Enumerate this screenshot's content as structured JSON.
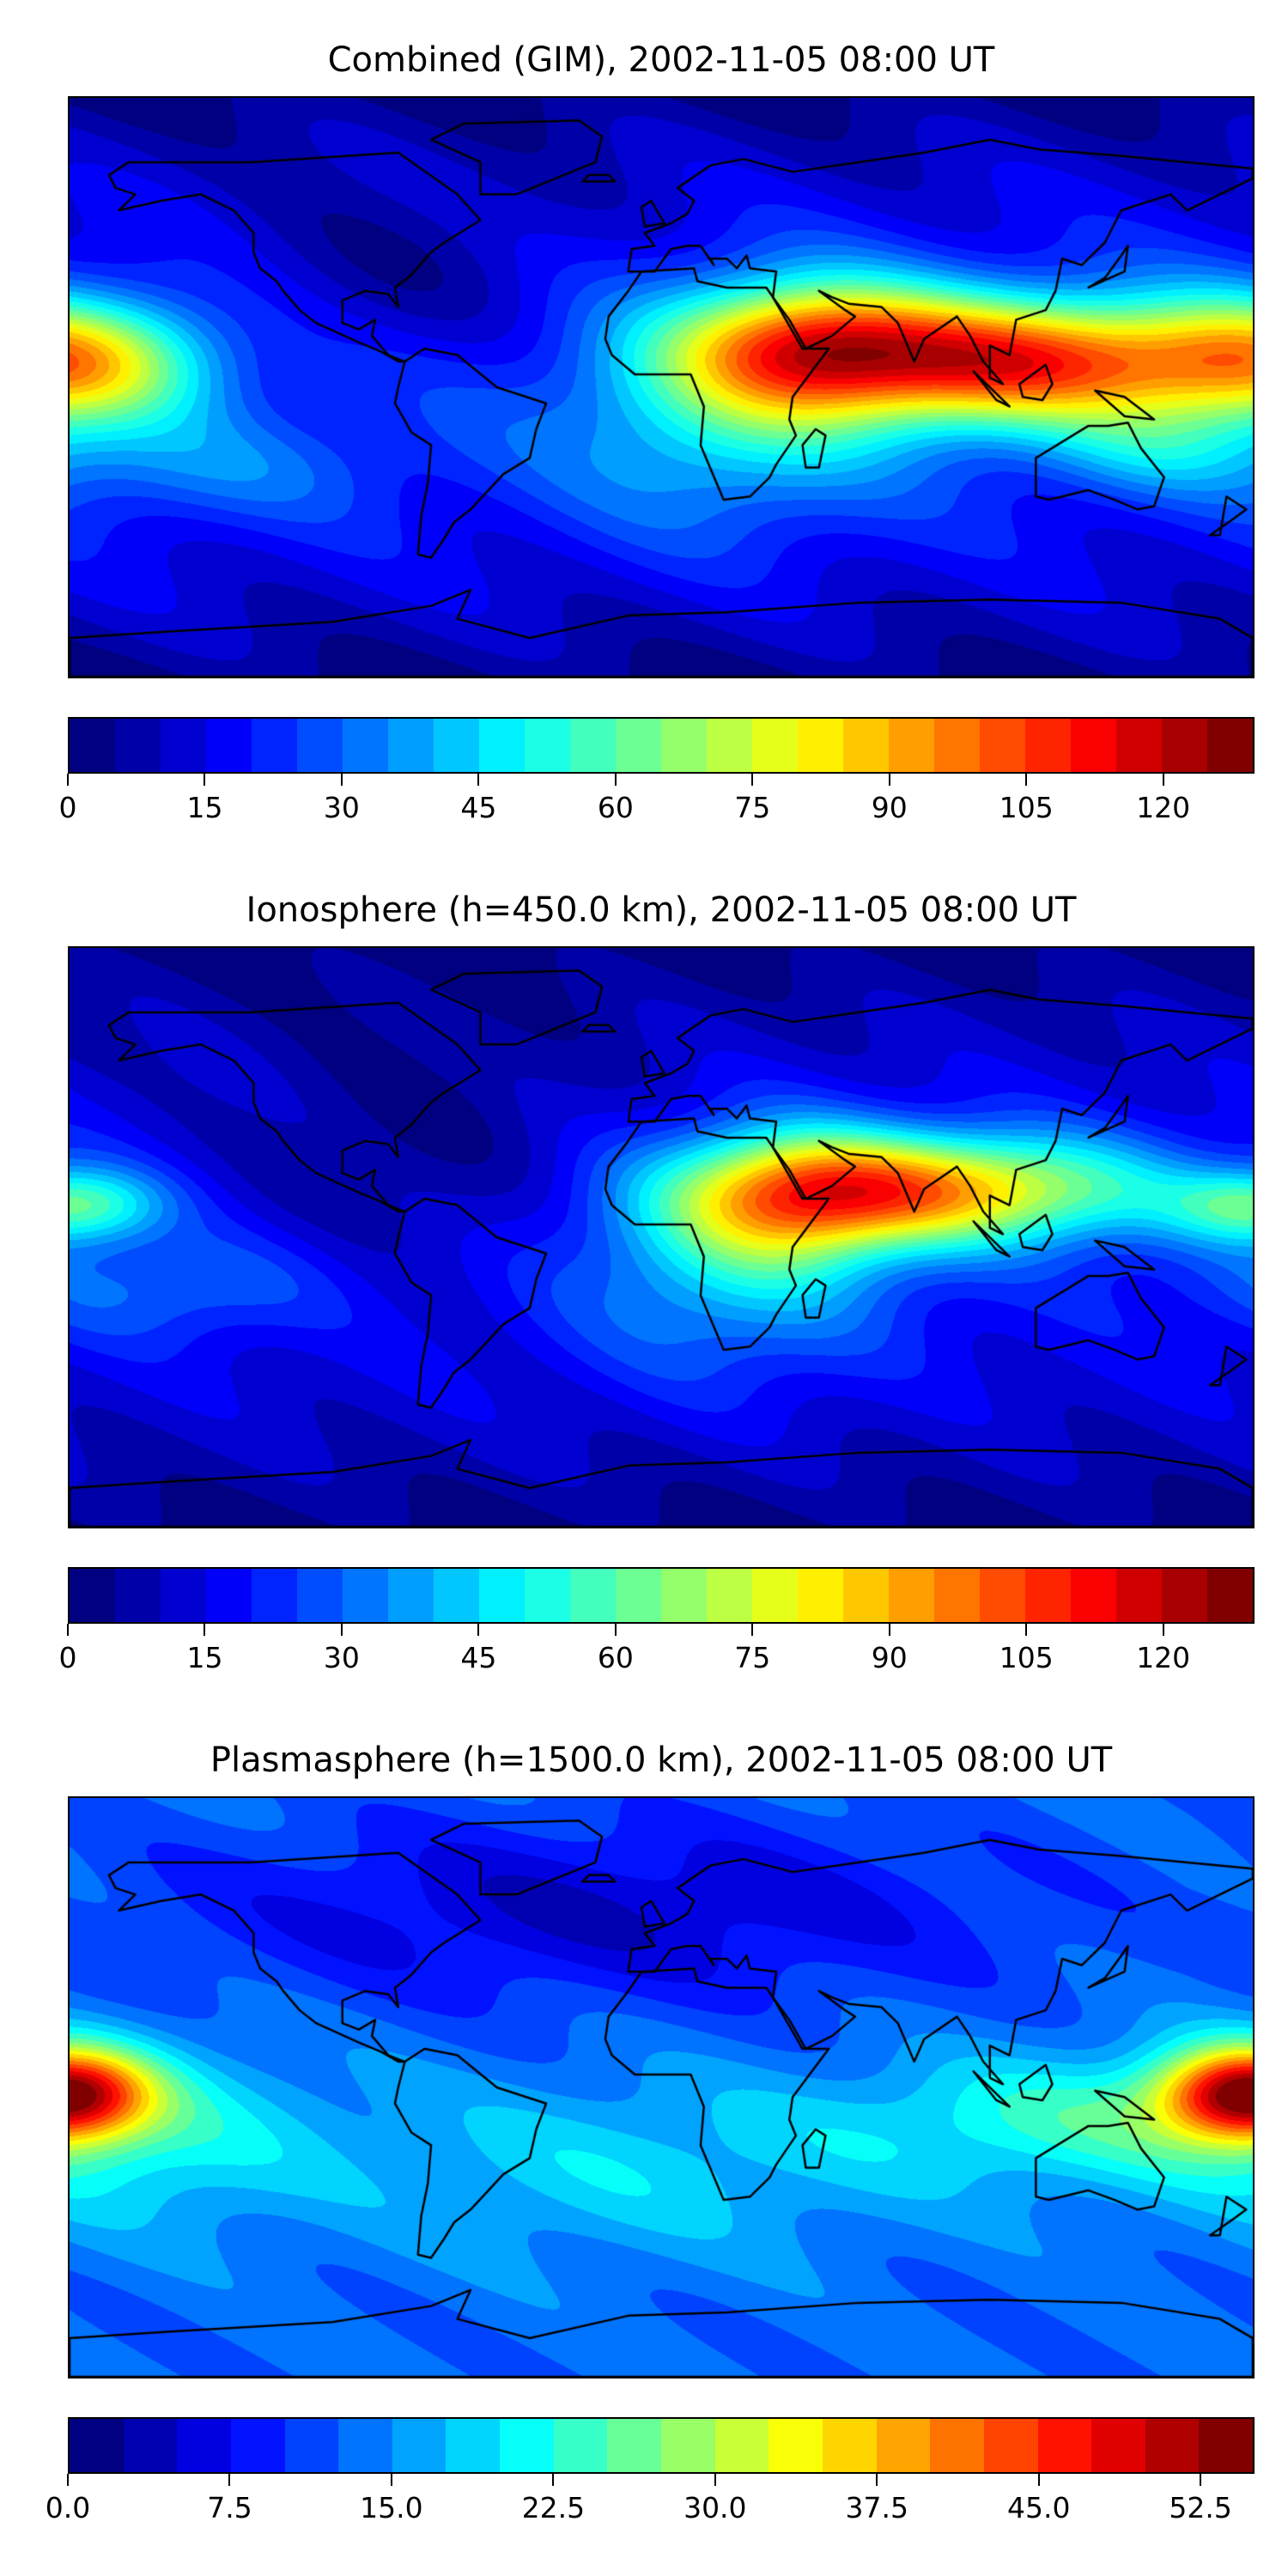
{
  "chart_data": [
    {
      "type": "heatmap",
      "title": "Combined (GIM), 2002-11-05 08:00 UT",
      "projection": "equirectangular world map with coastlines",
      "colormap": "jet",
      "levels": {
        "min": 0,
        "max": 130,
        "step": 5
      },
      "colorbar_ticks": [
        "0",
        "15",
        "30",
        "45",
        "60",
        "75",
        "90",
        "105",
        "120"
      ],
      "colorbar_tick_values": [
        0,
        15,
        30,
        45,
        60,
        75,
        90,
        105,
        120
      ],
      "features": "maximum ~110-120 over South/Southeast Asia and NE Africa near lat 10N; secondary ~80 over central Pacific (west edge); low 5-15 at polar latitudes"
    },
    {
      "type": "heatmap",
      "title": "Ionosphere  (h=450.0 km), 2002-11-05 08:00 UT",
      "projection": "equirectangular world map with coastlines",
      "colormap": "jet",
      "levels": {
        "min": 0,
        "max": 130,
        "step": 5
      },
      "colorbar_ticks": [
        "0",
        "15",
        "30",
        "45",
        "60",
        "75",
        "90",
        "105",
        "120"
      ],
      "colorbar_tick_values": [
        0,
        15,
        30,
        45,
        60,
        75,
        90,
        105,
        120
      ],
      "features": "maximum ~90-95 over India/Southeast Asia; ~55 at central Pacific west edge; low over Americas and poles"
    },
    {
      "type": "heatmap",
      "title": "Plasmasphere (h=1500.0 km), 2002-11-05 08:00 UT",
      "projection": "equirectangular world map with coastlines",
      "colormap": "jet",
      "levels": {
        "min": 0,
        "max": 55,
        "step": 2.5
      },
      "colorbar_ticks": [
        "0.0",
        "7.5",
        "15.0",
        "22.5",
        "30.0",
        "37.5",
        "45.0",
        "52.5"
      ],
      "colorbar_tick_values": [
        0,
        7.5,
        15,
        22.5,
        30,
        37.5,
        45,
        52.5
      ],
      "features": "maximum ~50 near date line at equator (both map edges); moderate 17-25 across southern tropics; low 3-8 over northern high latitudes"
    }
  ]
}
